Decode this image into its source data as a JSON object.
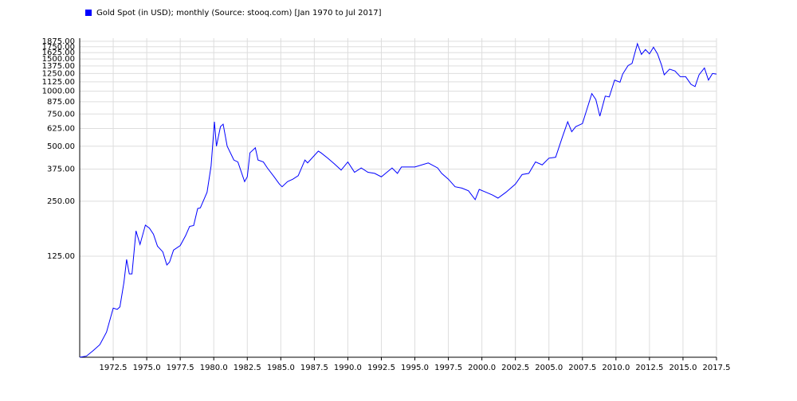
{
  "chart_data": {
    "type": "line",
    "log_y": true,
    "grid": true,
    "legend": "top-left",
    "xlim": [
      1970,
      2017.5
    ],
    "ylim": [
      35,
      1950
    ],
    "xticks": [
      1972.5,
      {
        "value": 1975,
        "label": "1975.0"
      },
      1977.5,
      {
        "value": 1980,
        "label": "1980.0"
      },
      1982.5,
      {
        "value": 1985,
        "label": "1985.0"
      },
      1987.5,
      {
        "value": 1990,
        "label": "1990.0"
      },
      1992.5,
      {
        "value": 1995,
        "label": "1995.0"
      },
      1997.5,
      {
        "value": 2000,
        "label": "2000.0"
      },
      2002.5,
      {
        "value": 2005,
        "label": "2005.0"
      },
      2007.5,
      {
        "value": 2010,
        "label": "2010.0"
      },
      2012.5,
      {
        "value": 2015,
        "label": "2015.0"
      },
      2017.5
    ],
    "yticks": [
      {
        "value": 125,
        "label": "125.00"
      },
      {
        "value": 250,
        "label": "250.00"
      },
      {
        "value": 375,
        "label": "375.00"
      },
      {
        "value": 500,
        "label": "500.00"
      },
      {
        "value": 625,
        "label": "625.00"
      },
      {
        "value": 750,
        "label": "750.00"
      },
      {
        "value": 875,
        "label": "875.00"
      },
      {
        "value": 1000,
        "label": "1000.00"
      },
      {
        "value": 1125,
        "label": "1125.00"
      },
      {
        "value": 1250,
        "label": "1250.00"
      },
      {
        "value": 1375,
        "label": "1375.00"
      },
      {
        "value": 1500,
        "label": "1500.00"
      },
      {
        "value": 1625,
        "label": "1625.00"
      },
      {
        "value": 1750,
        "label": "1750.00"
      },
      {
        "value": 1875,
        "label": "1875.00"
      }
    ],
    "x": [
      1970.0,
      1970.5,
      1971.0,
      1971.5,
      1972.0,
      1972.5,
      1972.8,
      1973.0,
      1973.3,
      1973.5,
      1973.7,
      1973.9,
      1974.2,
      1974.5,
      1974.9,
      1975.2,
      1975.5,
      1975.8,
      1976.2,
      1976.5,
      1976.7,
      1977.0,
      1977.5,
      1977.9,
      1978.2,
      1978.5,
      1978.8,
      1979.0,
      1979.5,
      1979.8,
      1980.05,
      1980.2,
      1980.5,
      1980.7,
      1981.0,
      1981.5,
      1981.8,
      1982.3,
      1982.5,
      1982.7,
      1983.1,
      1983.3,
      1983.7,
      1984.0,
      1984.5,
      1984.9,
      1985.1,
      1985.5,
      1985.9,
      1986.3,
      1986.8,
      1987.0,
      1987.8,
      1988.0,
      1988.5,
      1989.0,
      1989.5,
      1990.0,
      1990.5,
      1991.0,
      1991.5,
      1992.0,
      1992.5,
      1993.3,
      1993.7,
      1994.0,
      1995.0,
      1996.0,
      1996.7,
      1997.0,
      1997.5,
      1998.0,
      1998.5,
      1999.0,
      1999.5,
      1999.8,
      2000.3,
      2000.8,
      2001.2,
      2001.8,
      2002.5,
      2003.0,
      2003.5,
      2004.0,
      2004.5,
      2005.0,
      2005.5,
      2006.0,
      2006.4,
      2006.7,
      2007.0,
      2007.5,
      2008.2,
      2008.5,
      2008.8,
      2009.2,
      2009.5,
      2009.9,
      2010.3,
      2010.5,
      2010.9,
      2011.2,
      2011.6,
      2011.9,
      2012.2,
      2012.5,
      2012.8,
      2013.1,
      2013.4,
      2013.6,
      2014.0,
      2014.4,
      2014.8,
      2015.2,
      2015.6,
      2015.9,
      2016.2,
      2016.6,
      2016.9,
      2017.2,
      2017.5
    ],
    "series": [
      {
        "name": "Gold Spot (in USD); monthly (Source: stooq.com) [Jan 1970 to Jul 2017]",
        "color": "#0000ff",
        "values": [
          35,
          35.5,
          38,
          41,
          48,
          65,
          64,
          66,
          90,
          120,
          100,
          100,
          172,
          145,
          185,
          178,
          165,
          142,
          132,
          112,
          116,
          135,
          143,
          162,
          182,
          184,
          228,
          230,
          280,
          390,
          680,
          500,
          640,
          660,
          500,
          420,
          410,
          320,
          340,
          460,
          490,
          420,
          410,
          380,
          340,
          310,
          300,
          320,
          330,
          345,
          420,
          405,
          470,
          460,
          430,
          400,
          370,
          410,
          360,
          380,
          360,
          355,
          340,
          380,
          355,
          385,
          385,
          405,
          380,
          355,
          330,
          300,
          295,
          285,
          255,
          290,
          280,
          270,
          260,
          280,
          310,
          350,
          355,
          410,
          395,
          430,
          435,
          560,
          680,
          600,
          640,
          665,
          970,
          900,
          730,
          940,
          930,
          1150,
          1120,
          1240,
          1380,
          1420,
          1820,
          1590,
          1690,
          1600,
          1740,
          1600,
          1390,
          1230,
          1320,
          1290,
          1200,
          1200,
          1090,
          1060,
          1230,
          1340,
          1150,
          1250,
          1240
        ]
      }
    ]
  }
}
